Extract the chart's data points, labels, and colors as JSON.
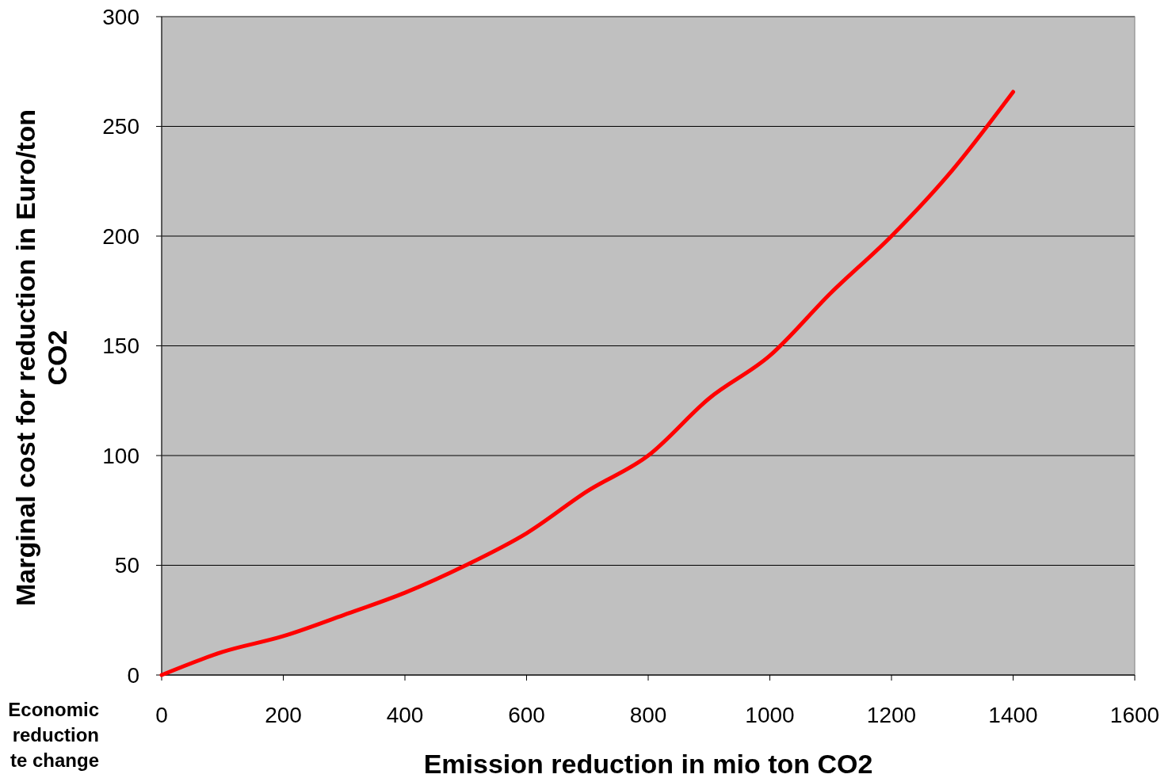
{
  "chart_data": {
    "type": "line",
    "xlabel": "Emission reduction in mio ton CO2",
    "ylabel": "Marginal cost for reduction in Euro/ton CO2",
    "annotations": [
      "Economic reduction te change"
    ],
    "x": [
      0,
      100,
      200,
      300,
      400,
      500,
      600,
      700,
      800,
      900,
      1000,
      1100,
      1200,
      1300,
      1400
    ],
    "series": [
      {
        "color": "#ff0000",
        "values": [
          0,
          10.5,
          17.7,
          27.4,
          37.5,
          50,
          64.6,
          83.8,
          100,
          126,
          145.5,
          174,
          200,
          230,
          265.7
        ]
      }
    ],
    "xlim": [
      0,
      1600
    ],
    "xticks": [
      0,
      200,
      400,
      600,
      800,
      1000,
      1200,
      1400,
      1600
    ],
    "ylim": [
      0,
      300
    ],
    "yticks": [
      0,
      50,
      100,
      150,
      200,
      250,
      300
    ],
    "grid": "y",
    "marker": "none",
    "line_style": "solid"
  }
}
